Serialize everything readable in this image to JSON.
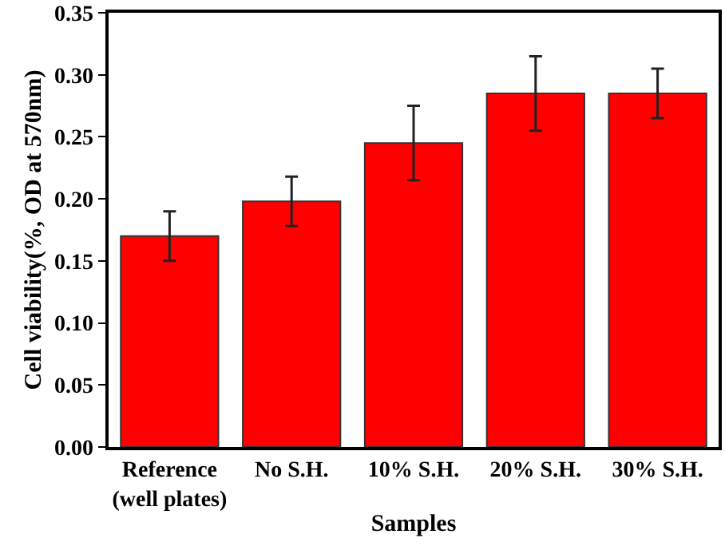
{
  "chart_data": {
    "type": "bar",
    "xlabel": "Samples",
    "ylabel": "Cell viability(%, OD at 570nm)",
    "categories": [
      "Reference\n(well plates)",
      "No S.H.",
      "10% S.H.",
      "20% S.H.",
      "30% S.H."
    ],
    "values": [
      0.17,
      0.198,
      0.245,
      0.285,
      0.285
    ],
    "errors": [
      0.02,
      0.02,
      0.03,
      0.03,
      0.02
    ],
    "color": "#ff0000",
    "ylim": [
      0,
      0.35
    ],
    "yticks": [
      {
        "value": 0,
        "label": "0.00"
      },
      {
        "value": 0.05,
        "label": "0.05"
      },
      {
        "value": 0.1,
        "label": "0.10"
      },
      {
        "value": 0.15,
        "label": "0.15"
      },
      {
        "value": 0.2,
        "label": "0.20"
      },
      {
        "value": 0.25,
        "label": "0.25"
      },
      {
        "value": 0.3,
        "label": "0.30"
      },
      {
        "value": 0.35,
        "label": "0.35"
      }
    ],
    "grid": false,
    "legend": false
  }
}
